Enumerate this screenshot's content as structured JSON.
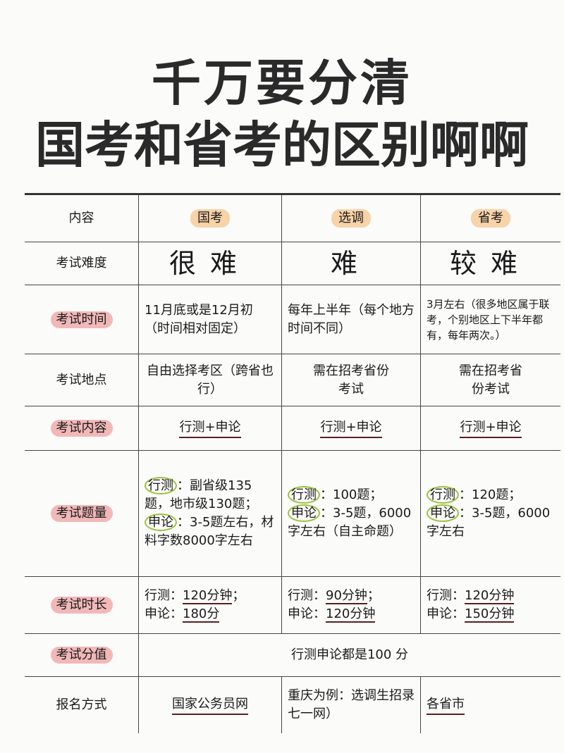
{
  "title": {
    "line1": "千万要分清",
    "line2": "国考和省考的区别啊啊"
  },
  "header": {
    "label": "内容",
    "cols": [
      "国考",
      "选调",
      "省考"
    ]
  },
  "rows": {
    "difficulty": {
      "label": "考试难度",
      "values": [
        "很难",
        "难",
        "较难"
      ]
    },
    "time": {
      "label": "考试时间",
      "values": [
        "11月底或是12月初（时间相对固定）",
        "每年上半年（每个地方时间不同）",
        "3月左右（很多地区属于联考，个别地区上下半年都有，每年两次。）"
      ]
    },
    "place": {
      "label": "考试地点",
      "values": [
        "自由选择考区（跨省也行）",
        "需在招考省份考试",
        "需在招考省份考试"
      ]
    },
    "content": {
      "label": "考试内容",
      "values": [
        "行测+申论",
        "行测+申论",
        "行测+申论"
      ]
    },
    "count": {
      "label": "考试题量",
      "xc": "行测",
      "sl": "申论",
      "values": [
        {
          "a": "：副省级135题，地市级130题；",
          "b": "：3-5题左右，材料字数8000字左右"
        },
        {
          "a": "：100题；",
          "b": "：3-5题，6000字左右（自主命题）"
        },
        {
          "a": "：120题；",
          "b": "：3-5题，6000字左右"
        }
      ]
    },
    "duration": {
      "label": "考试时长",
      "values": [
        {
          "a": "行测：",
          "av": "120分钟",
          "as": "；",
          "b": "申论：",
          "bv": "180分"
        },
        {
          "a": "行测：",
          "av": "90分钟",
          "as": "；",
          "b": "申论：",
          "bv": "120分钟"
        },
        {
          "a": "行测：",
          "av": "120分钟",
          "as": "",
          "b": "申论：",
          "bv": "150分钟"
        }
      ]
    },
    "score": {
      "label": "考试分值",
      "value": "行测申论都是100 分"
    },
    "signup": {
      "label": "报名方式",
      "values": [
        "国家公务员网",
        "重庆为例：选调生招录七一网）",
        "各省市"
      ]
    }
  },
  "colors": {
    "pink": "#f2b8b8",
    "peach": "#f8d2a8",
    "circle": "#9bc23c",
    "underline": "#5a1f1f"
  }
}
